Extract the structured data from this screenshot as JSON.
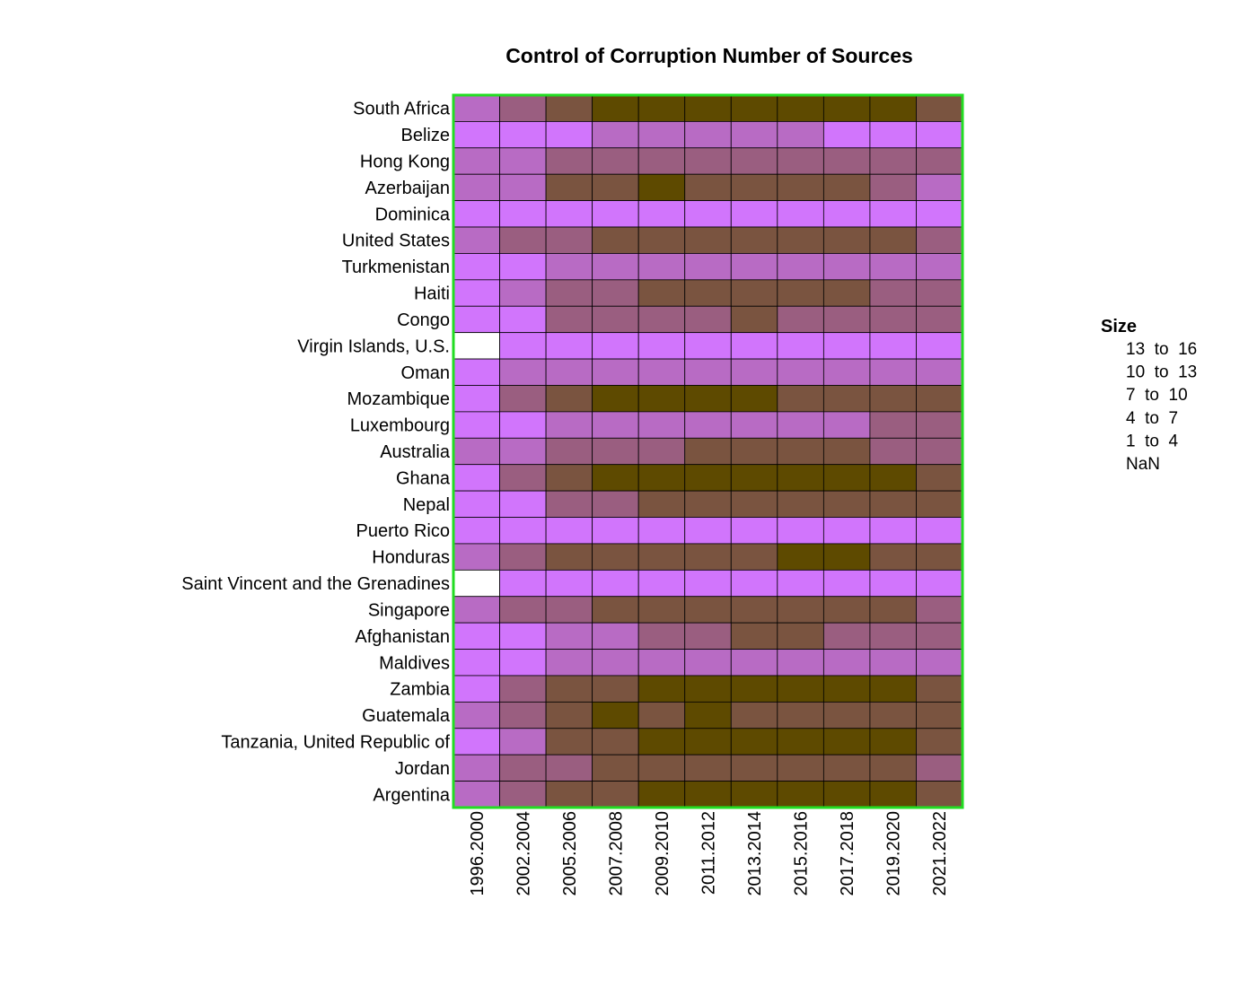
{
  "chart_data": {
    "type": "heatmap",
    "title": "Control of Corruption Number of Sources",
    "rows": [
      "South Africa",
      "Belize",
      "Hong Kong",
      "Azerbaijan",
      "Dominica",
      "United States",
      "Turkmenistan",
      "Haiti",
      "Congo",
      "Virgin Islands, U.S.",
      "Oman",
      "Mozambique",
      "Luxembourg",
      "Australia",
      "Ghana",
      "Nepal",
      "Puerto Rico",
      "Honduras",
      "Saint Vincent and the Grenadines",
      "Singapore",
      "Afghanistan",
      "Maldives",
      "Zambia",
      "Guatemala",
      "Tanzania, United Republic of",
      "Jordan",
      "Argentina"
    ],
    "columns": [
      "1996.2000",
      "2002.2004",
      "2005.2006",
      "2007.2008",
      "2009.2010",
      "2011.2012",
      "2013.2014",
      "2015.2016",
      "2017.2018",
      "2019.2020",
      "2021.2022"
    ],
    "values": [
      [
        2,
        3,
        4,
        5,
        5,
        5,
        5,
        5,
        5,
        5,
        4
      ],
      [
        1,
        1,
        1,
        2,
        2,
        2,
        2,
        2,
        1,
        1,
        1
      ],
      [
        2,
        2,
        3,
        3,
        3,
        3,
        3,
        3,
        3,
        3,
        3
      ],
      [
        2,
        2,
        4,
        4,
        5,
        4,
        4,
        4,
        4,
        3,
        2
      ],
      [
        1,
        1,
        1,
        1,
        1,
        1,
        1,
        1,
        1,
        1,
        1
      ],
      [
        2,
        3,
        3,
        4,
        4,
        4,
        4,
        4,
        4,
        4,
        3
      ],
      [
        1,
        1,
        2,
        2,
        2,
        2,
        2,
        2,
        2,
        2,
        2
      ],
      [
        1,
        2,
        3,
        3,
        4,
        4,
        4,
        4,
        4,
        3,
        3
      ],
      [
        1,
        1,
        3,
        3,
        3,
        3,
        4,
        3,
        3,
        3,
        3
      ],
      [
        null,
        1,
        1,
        1,
        1,
        1,
        1,
        1,
        1,
        1,
        1
      ],
      [
        1,
        2,
        2,
        2,
        2,
        2,
        2,
        2,
        2,
        2,
        2
      ],
      [
        1,
        3,
        4,
        5,
        5,
        5,
        5,
        4,
        4,
        4,
        4
      ],
      [
        1,
        1,
        2,
        2,
        2,
        2,
        2,
        2,
        2,
        3,
        3
      ],
      [
        2,
        2,
        3,
        3,
        3,
        4,
        4,
        4,
        4,
        3,
        3
      ],
      [
        1,
        3,
        4,
        5,
        5,
        5,
        5,
        5,
        5,
        5,
        4
      ],
      [
        1,
        1,
        3,
        3,
        4,
        4,
        4,
        4,
        4,
        4,
        4
      ],
      [
        1,
        1,
        1,
        1,
        1,
        1,
        1,
        1,
        1,
        1,
        1
      ],
      [
        2,
        3,
        4,
        4,
        4,
        4,
        4,
        5,
        5,
        4,
        4
      ],
      [
        null,
        1,
        1,
        1,
        1,
        1,
        1,
        1,
        1,
        1,
        1
      ],
      [
        2,
        3,
        3,
        4,
        4,
        4,
        4,
        4,
        4,
        4,
        3
      ],
      [
        1,
        1,
        2,
        2,
        3,
        3,
        4,
        4,
        3,
        3,
        3
      ],
      [
        1,
        1,
        2,
        2,
        2,
        2,
        2,
        2,
        2,
        2,
        2
      ],
      [
        1,
        3,
        4,
        4,
        5,
        5,
        5,
        5,
        5,
        5,
        4
      ],
      [
        2,
        3,
        4,
        5,
        4,
        5,
        4,
        4,
        4,
        4,
        4
      ],
      [
        1,
        2,
        4,
        4,
        5,
        5,
        5,
        5,
        5,
        5,
        4
      ],
      [
        2,
        3,
        3,
        4,
        4,
        4,
        4,
        4,
        4,
        4,
        3
      ],
      [
        2,
        3,
        4,
        4,
        5,
        5,
        5,
        5,
        5,
        5,
        4
      ]
    ],
    "legend": {
      "title": "Size",
      "placement": "right",
      "entries": [
        {
          "label": "13  to  16",
          "bin": 5
        },
        {
          "label": "10  to  13",
          "bin": 4
        },
        {
          "label": "7  to  10",
          "bin": 3
        },
        {
          "label": "4  to  7",
          "bin": 2
        },
        {
          "label": "1  to  4",
          "bin": 1
        },
        {
          "label": "NaN",
          "bin": null
        }
      ]
    },
    "bin_colors": {
      "1": "#d175fc",
      "2": "#b86bc4",
      "3": "#9a5e80",
      "4": "#7a5440",
      "5": "#5e4a00",
      "nan": "#ffffff"
    },
    "frame_color": "#22dd22"
  }
}
